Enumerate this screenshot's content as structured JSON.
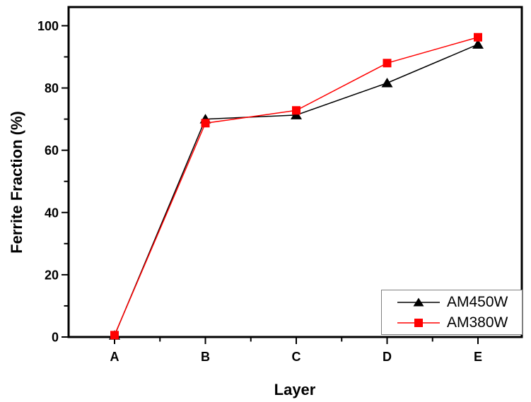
{
  "figure": {
    "background": "#ffffff",
    "frame_color": "#000000",
    "legend_border_color": "#7f7f7f"
  },
  "chart_data": {
    "type": "line",
    "title": "",
    "xlabel": "Layer",
    "ylabel": "Ferrite Fraction (%)",
    "categories": [
      "A",
      "B",
      "C",
      "D",
      "E"
    ],
    "series": [
      {
        "name": "AM450W",
        "color": "#000000",
        "marker": "triangle-up",
        "values": [
          0.5,
          70.0,
          71.3,
          81.6,
          94.0
        ]
      },
      {
        "name": "AM380W",
        "color": "#ff0000",
        "marker": "square",
        "values": [
          0.6,
          68.7,
          72.8,
          88.0,
          96.3
        ]
      }
    ],
    "ylim": [
      0,
      106
    ],
    "yticks": [
      0,
      20,
      40,
      60,
      80,
      100
    ],
    "yminorticks": [
      10,
      30,
      50,
      70,
      90
    ],
    "xminor_between_categories": true,
    "grid": false,
    "legend_position": "bottom-right"
  }
}
